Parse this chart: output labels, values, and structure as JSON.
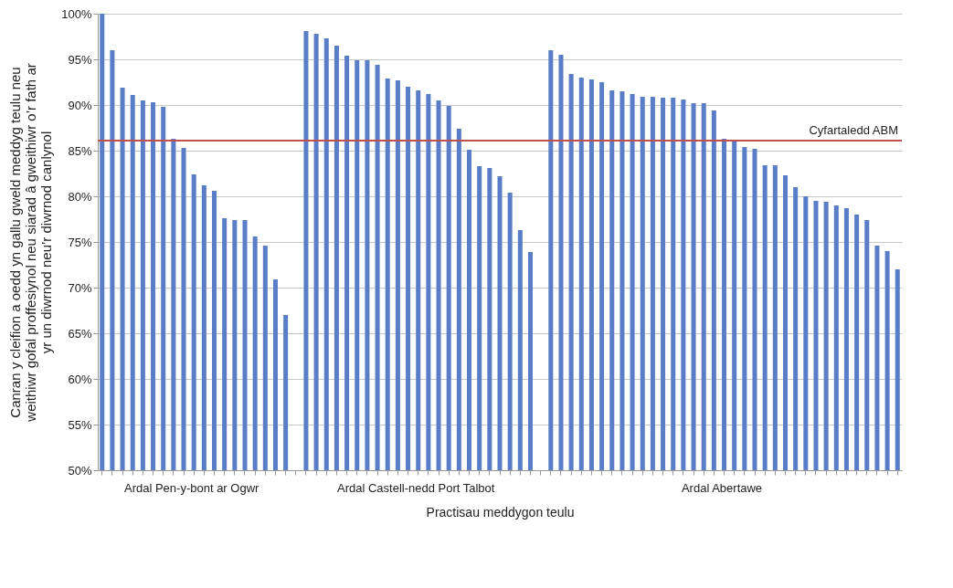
{
  "chart_data": {
    "type": "bar",
    "xlabel": "Practisau meddygon teulu",
    "ylabel": "Canran y cleifion a oedd yn gallu gweld meddyg teulu neu weithiwr gofal proffesiynol neu siarad â gweithiwr o’r fath ar yr un diwrnod neu’r diwrnod canlynol",
    "categories": [
      null,
      null,
      null,
      null,
      null,
      null,
      null,
      null,
      null,
      null,
      null,
      null,
      null,
      null,
      null,
      null,
      null,
      null,
      null,
      null,
      null,
      null,
      null,
      null,
      null,
      null,
      null,
      null,
      null,
      null,
      null,
      null,
      null,
      null,
      null,
      null,
      null,
      null,
      null,
      null,
      null,
      null,
      null,
      null,
      null,
      null,
      null,
      null,
      null,
      null,
      null,
      null,
      null,
      null,
      null,
      null,
      null,
      null,
      null,
      null,
      null,
      null,
      null,
      null,
      null,
      null,
      null,
      null,
      null,
      null,
      null,
      null,
      null,
      null,
      null,
      null,
      null,
      null,
      null
    ],
    "series": [
      {
        "name": "Ardal Pen-y-bont ar Ogwr",
        "color": "#5a7dc8",
        "values": [
          100,
          96,
          91.9,
          91.1,
          90.5,
          90.3,
          89.8,
          86.3,
          85.3,
          82.4,
          81.2,
          80.6,
          77.6,
          77.4,
          77.4,
          75.6,
          74.6,
          70.9,
          67,
          null,
          null,
          null,
          null,
          null,
          null,
          null,
          null,
          null,
          null,
          null,
          null,
          null,
          null,
          null,
          null,
          null,
          null,
          null,
          null,
          null,
          null,
          null,
          null,
          null,
          null,
          null,
          null,
          null,
          null,
          null,
          null,
          null,
          null,
          null,
          null,
          null,
          null,
          null,
          null,
          null,
          null,
          null,
          null,
          null,
          null,
          null,
          null,
          null,
          null,
          null,
          null,
          null,
          null,
          null,
          null,
          null,
          null,
          null,
          null
        ]
      },
      {
        "name": "Ardal Castell-nedd Port Talbot",
        "color": "#5a7dc8",
        "values": [
          null,
          null,
          null,
          null,
          null,
          null,
          null,
          null,
          null,
          null,
          null,
          null,
          null,
          null,
          null,
          null,
          null,
          null,
          null,
          null,
          98.1,
          97.8,
          97.3,
          96.5,
          95.4,
          94.9,
          94.9,
          94.4,
          92.9,
          92.7,
          92,
          91.6,
          91.2,
          90.5,
          89.9,
          87.4,
          85.1,
          83.3,
          83.1,
          82.2,
          80.4,
          76.3,
          73.9,
          null,
          null,
          null,
          null,
          null,
          null,
          null,
          null,
          null,
          null,
          null,
          null,
          null,
          null,
          null,
          null,
          null,
          null,
          null,
          null,
          null,
          null,
          null,
          null,
          null,
          null,
          null,
          null,
          null,
          null,
          null,
          null,
          null,
          null,
          null,
          null
        ]
      },
      {
        "name": "Ardal Abertawe",
        "color": "#5a7dc8",
        "values": [
          null,
          null,
          null,
          null,
          null,
          null,
          null,
          null,
          null,
          null,
          null,
          null,
          null,
          null,
          null,
          null,
          null,
          null,
          null,
          null,
          null,
          null,
          null,
          null,
          null,
          null,
          null,
          null,
          null,
          null,
          null,
          null,
          null,
          null,
          null,
          null,
          null,
          null,
          null,
          null,
          null,
          null,
          null,
          null,
          96,
          95.5,
          93.4,
          93,
          92.8,
          92.5,
          91.6,
          91.5,
          91.2,
          90.9,
          90.9,
          90.8,
          90.8,
          90.6,
          90.2,
          90.2,
          89.4,
          86.3,
          86,
          85.4,
          85.2,
          83.4,
          83.4,
          82.3,
          81,
          80,
          79.5,
          79.4,
          79,
          78.7,
          78,
          77.4,
          74.6,
          74,
          72
        ]
      }
    ],
    "ylim": [
      50,
      100
    ],
    "yticks": [
      {
        "value": 50,
        "label": "50%"
      },
      {
        "value": 55,
        "label": "55%"
      },
      {
        "value": 60,
        "label": "60%"
      },
      {
        "value": 65,
        "label": "65%"
      },
      {
        "value": 70,
        "label": "70%"
      },
      {
        "value": 75,
        "label": "75%"
      },
      {
        "value": 80,
        "label": "80%"
      },
      {
        "value": 85,
        "label": "85%"
      },
      {
        "value": 90,
        "label": "90%"
      },
      {
        "value": 95,
        "label": "95%"
      },
      {
        "value": 100,
        "label": "100%"
      }
    ],
    "ref_lines": [
      {
        "axis": "y",
        "value": 86.1,
        "label": "Cyfartaledd ABM",
        "color": "#c0504d"
      }
    ],
    "grid": "y",
    "tick_labels": "y"
  }
}
